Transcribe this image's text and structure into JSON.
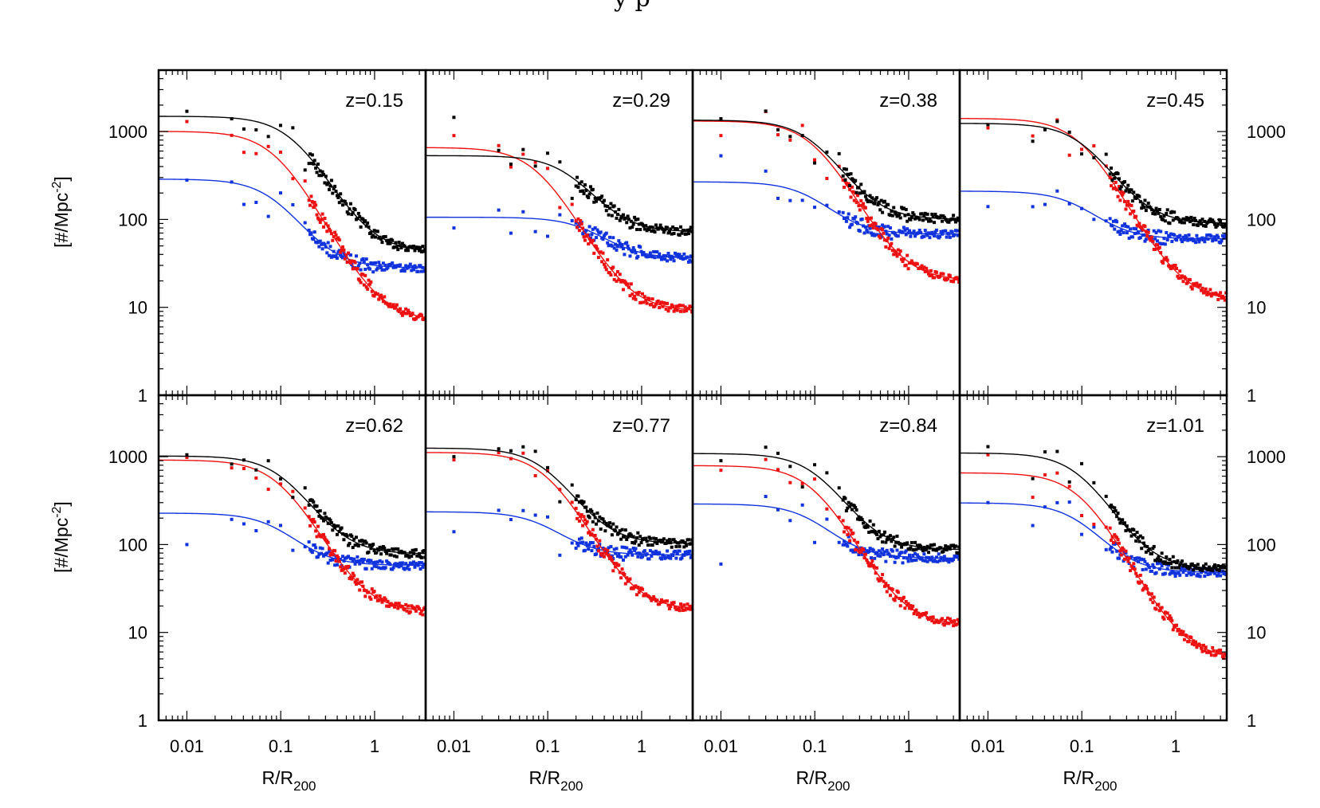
{
  "header_fragment": "y p",
  "chart_data": {
    "type": "scatter",
    "xlabel": {
      "main": "R/R",
      "sub": "200"
    },
    "ylabel": {
      "main": "[#/Mpc",
      "sup": "-2",
      "close": "]"
    },
    "x_scale": "log",
    "y_scale": "log",
    "xlim": [
      0.005,
      3.5
    ],
    "ylim": [
      1,
      5000
    ],
    "x_ticks": [
      {
        "value": 0.01,
        "label": "0.01"
      },
      {
        "value": 0.1,
        "label": "0.1"
      },
      {
        "value": 1,
        "label": "1"
      }
    ],
    "y_ticks": [
      {
        "value": 1,
        "label": "1"
      },
      {
        "value": 10,
        "label": "10"
      },
      {
        "value": 100,
        "label": "100"
      },
      {
        "value": 1000,
        "label": "1000"
      }
    ],
    "grid": false,
    "legend": "none",
    "colors": {
      "black": "#000000",
      "red": "#ee1111",
      "blue": "#1133dd"
    },
    "panels": [
      {
        "label": "z=0.15",
        "row": 0,
        "col": 0,
        "black": {
          "amp": 1450,
          "rc": 0.14,
          "bg": 42,
          "first": 1700,
          "seed": 11
        },
        "red": {
          "amp": 1000,
          "rc": 0.09,
          "bg": 7,
          "first": 1300,
          "seed": 12
        },
        "blue": {
          "amp": 260,
          "rc": 0.09,
          "bg": 28,
          "first": 280,
          "seed": 13
        }
      },
      {
        "label": "z=0.29",
        "row": 0,
        "col": 1,
        "black": {
          "amp": 460,
          "rc": 0.18,
          "bg": 72,
          "first": 1450,
          "seed": 21
        },
        "red": {
          "amp": 650,
          "rc": 0.08,
          "bg": 9,
          "first": 900,
          "seed": 22
        },
        "blue": {
          "amp": 70,
          "rc": 0.3,
          "bg": 36,
          "first": 80,
          "seed": 23
        }
      },
      {
        "label": "z=0.38",
        "row": 0,
        "col": 2,
        "black": {
          "amp": 1250,
          "rc": 0.1,
          "bg": 100,
          "first": 1400,
          "seed": 31
        },
        "red": {
          "amp": 1300,
          "rc": 0.1,
          "bg": 20,
          "first": 900,
          "seed": 32
        },
        "blue": {
          "amp": 200,
          "rc": 0.1,
          "bg": 68,
          "first": 530,
          "seed": 33
        }
      },
      {
        "label": "z=0.45",
        "row": 0,
        "col": 3,
        "black": {
          "amp": 1150,
          "rc": 0.11,
          "bg": 90,
          "first": 1200,
          "seed": 41
        },
        "red": {
          "amp": 1400,
          "rc": 0.1,
          "bg": 12,
          "first": 1100,
          "seed": 42
        },
        "blue": {
          "amp": 150,
          "rc": 0.1,
          "bg": 60,
          "first": 140,
          "seed": 43
        }
      },
      {
        "label": "z=0.62",
        "row": 1,
        "col": 0,
        "black": {
          "amp": 940,
          "rc": 0.11,
          "bg": 78,
          "first": 1050,
          "seed": 51
        },
        "red": {
          "amp": 900,
          "rc": 0.1,
          "bg": 17,
          "first": 980,
          "seed": 52
        },
        "blue": {
          "amp": 170,
          "rc": 0.1,
          "bg": 58,
          "first": 100,
          "seed": 53
        }
      },
      {
        "label": "z=0.77",
        "row": 1,
        "col": 1,
        "black": {
          "amp": 1150,
          "rc": 0.1,
          "bg": 102,
          "first": 1000,
          "seed": 61
        },
        "red": {
          "amp": 1100,
          "rc": 0.1,
          "bg": 18,
          "first": 920,
          "seed": 62
        },
        "blue": {
          "amp": 160,
          "rc": 0.1,
          "bg": 76,
          "first": 140,
          "seed": 63
        }
      },
      {
        "label": "z=0.84",
        "row": 1,
        "col": 2,
        "black": {
          "amp": 1000,
          "rc": 0.11,
          "bg": 87,
          "first": 900,
          "seed": 71
        },
        "red": {
          "amp": 780,
          "rc": 0.1,
          "bg": 12,
          "first": 700,
          "seed": 72
        },
        "blue": {
          "amp": 220,
          "rc": 0.1,
          "bg": 70,
          "first": 60,
          "seed": 73
        }
      },
      {
        "label": "z=1.01",
        "row": 1,
        "col": 3,
        "black": {
          "amp": 1050,
          "rc": 0.1,
          "bg": 52,
          "first": 1300,
          "seed": 81
        },
        "red": {
          "amp": 650,
          "rc": 0.1,
          "bg": 5,
          "first": 1050,
          "seed": 82
        },
        "blue": {
          "amp": 250,
          "rc": 0.1,
          "bg": 48,
          "first": 300,
          "seed": 83
        }
      }
    ]
  }
}
